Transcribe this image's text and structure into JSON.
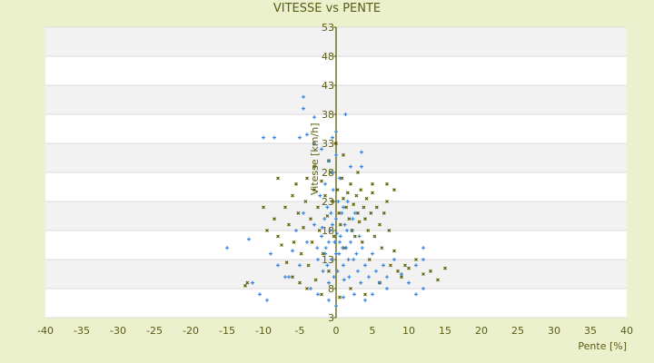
{
  "chart_data": {
    "type": "scatter",
    "title": "VITESSE vs PENTE",
    "xlabel": "Pente [%]",
    "ylabel": "Vitesse [km/h]",
    "xlim": [
      -40,
      40
    ],
    "ylim": [
      3,
      53
    ],
    "xticks": [
      -40,
      -35,
      -30,
      -25,
      -20,
      -15,
      -10,
      -5,
      0,
      5,
      10,
      15,
      20,
      25,
      30,
      35,
      40
    ],
    "yticks": [
      3,
      8,
      13,
      18,
      23,
      28,
      33,
      38,
      43,
      48,
      53
    ],
    "grid": "horizontal bands",
    "legend": "none",
    "series": [
      {
        "name": "series-olive",
        "color": "#5c5c00",
        "marker": "x",
        "points": [
          [
            -12.5,
            8.5
          ],
          [
            -12.2,
            9
          ],
          [
            -9.5,
            18
          ],
          [
            -8.5,
            20
          ],
          [
            -8,
            17
          ],
          [
            -7.5,
            15.5
          ],
          [
            -7,
            22
          ],
          [
            -6.8,
            12.5
          ],
          [
            -6.5,
            19
          ],
          [
            -6,
            24
          ],
          [
            -5.8,
            16
          ],
          [
            -5.5,
            26
          ],
          [
            -5.2,
            21
          ],
          [
            -5,
            9
          ],
          [
            -4.8,
            14
          ],
          [
            -4.5,
            18.5
          ],
          [
            -4.2,
            23
          ],
          [
            -4,
            27
          ],
          [
            -3.8,
            12
          ],
          [
            -3.5,
            20
          ],
          [
            -3.3,
            16
          ],
          [
            -3,
            25
          ],
          [
            -2.8,
            9.5
          ],
          [
            -2.5,
            22
          ],
          [
            -2.3,
            18
          ],
          [
            -2,
            26.5
          ],
          [
            -1.8,
            14
          ],
          [
            -1.5,
            24
          ],
          [
            -1.2,
            20.5
          ],
          [
            -1,
            11
          ],
          [
            -0.8,
            28
          ],
          [
            -0.5,
            23
          ],
          [
            -0.3,
            17
          ],
          [
            0.2,
            25
          ],
          [
            0.4,
            21
          ],
          [
            0.6,
            19
          ],
          [
            0.8,
            27
          ],
          [
            1,
            23.5
          ],
          [
            1.2,
            15
          ],
          [
            1.4,
            22
          ],
          [
            1.6,
            24.5
          ],
          [
            1.8,
            20
          ],
          [
            2,
            26
          ],
          [
            2.2,
            18
          ],
          [
            2.4,
            22.5
          ],
          [
            2.6,
            17
          ],
          [
            2.8,
            24
          ],
          [
            3,
            21
          ],
          [
            3.2,
            19.5
          ],
          [
            3.4,
            25
          ],
          [
            3.6,
            16
          ],
          [
            3.8,
            22
          ],
          [
            4,
            20
          ],
          [
            4.2,
            23.5
          ],
          [
            4.4,
            18
          ],
          [
            4.6,
            13
          ],
          [
            4.8,
            21
          ],
          [
            5,
            24.5
          ],
          [
            5.3,
            17
          ],
          [
            5.6,
            22
          ],
          [
            6,
            19
          ],
          [
            6.3,
            15
          ],
          [
            6.6,
            21
          ],
          [
            7,
            23
          ],
          [
            7.3,
            18
          ],
          [
            7.5,
            12
          ],
          [
            8,
            14.5
          ],
          [
            8.5,
            11
          ],
          [
            9,
            10
          ],
          [
            9.5,
            12
          ],
          [
            10,
            11.5
          ],
          [
            11,
            13
          ],
          [
            12,
            10.5
          ],
          [
            13,
            11
          ],
          [
            14,
            9.5
          ],
          [
            15,
            11.5
          ],
          [
            -2,
            7
          ],
          [
            0.5,
            6.5
          ],
          [
            2,
            8
          ],
          [
            4,
            7
          ],
          [
            -4,
            8
          ],
          [
            6,
            9
          ],
          [
            -6,
            10
          ],
          [
            1,
            31
          ],
          [
            0,
            33
          ],
          [
            -1,
            30
          ],
          [
            -8,
            27
          ],
          [
            -10,
            22
          ],
          [
            3,
            28
          ],
          [
            -3,
            29
          ],
          [
            5,
            26
          ],
          [
            7,
            26
          ],
          [
            8,
            25
          ]
        ]
      },
      {
        "name": "series-blue",
        "color": "#3a86d8",
        "marker": "+",
        "points": [
          [
            -15,
            15
          ],
          [
            -12,
            16.5
          ],
          [
            -11.5,
            9
          ],
          [
            -10,
            34
          ],
          [
            -8.5,
            34
          ],
          [
            -4.5,
            41
          ],
          [
            -4.5,
            39
          ],
          [
            -3,
            37.5
          ],
          [
            1.3,
            38
          ],
          [
            -5,
            34
          ],
          [
            -4,
            34.5
          ],
          [
            -0.5,
            34
          ],
          [
            3.5,
            31.5
          ],
          [
            3.5,
            29
          ],
          [
            12,
            13
          ],
          [
            12,
            15
          ],
          [
            11,
            12
          ],
          [
            10,
            9
          ],
          [
            9,
            10.5
          ],
          [
            -9,
            14
          ],
          [
            -8,
            12
          ],
          [
            -7,
            10
          ],
          [
            -6,
            14.5
          ],
          [
            -5.5,
            18
          ],
          [
            -5,
            12
          ],
          [
            -4.5,
            21
          ],
          [
            -4,
            16
          ],
          [
            -3.5,
            8
          ],
          [
            -3,
            19
          ],
          [
            -2.5,
            13
          ],
          [
            -2.2,
            24
          ],
          [
            -2,
            17
          ],
          [
            -1.8,
            11
          ],
          [
            -1.6,
            20
          ],
          [
            -1.4,
            15
          ],
          [
            -1.2,
            22
          ],
          [
            -1,
            9
          ],
          [
            -0.8,
            18
          ],
          [
            -0.6,
            13
          ],
          [
            -0.4,
            25
          ],
          [
            -0.2,
            16
          ],
          [
            0,
            20
          ],
          [
            0.2,
            11
          ],
          [
            0.4,
            14
          ],
          [
            0.6,
            17
          ],
          [
            0.8,
            21
          ],
          [
            1,
            12
          ],
          [
            1.2,
            19
          ],
          [
            1.4,
            15
          ],
          [
            1.6,
            23
          ],
          [
            1.8,
            10
          ],
          [
            2,
            16
          ],
          [
            2.2,
            18
          ],
          [
            2.4,
            13
          ],
          [
            2.6,
            21
          ],
          [
            2.8,
            14
          ],
          [
            3,
            11
          ],
          [
            3.2,
            17
          ],
          [
            3.4,
            9
          ],
          [
            3.6,
            15
          ],
          [
            4,
            12
          ],
          [
            4.5,
            10
          ],
          [
            5,
            14
          ],
          [
            5.5,
            11
          ],
          [
            6,
            9
          ],
          [
            6.5,
            12
          ],
          [
            7,
            10
          ],
          [
            8,
            13
          ],
          [
            -1.5,
            26
          ],
          [
            -0.5,
            28
          ],
          [
            0.5,
            27
          ],
          [
            -1,
            30
          ],
          [
            0,
            31
          ],
          [
            2,
            29
          ],
          [
            -2.5,
            7
          ],
          [
            -1,
            6
          ],
          [
            0,
            5
          ],
          [
            1,
            6.5
          ],
          [
            2.5,
            7
          ],
          [
            4,
            6
          ],
          [
            -1.5,
            14
          ],
          [
            -1,
            16
          ],
          [
            -0.5,
            19
          ],
          [
            0,
            14
          ],
          [
            0.5,
            16
          ],
          [
            1,
            22
          ],
          [
            1.5,
            18
          ],
          [
            -1.2,
            12
          ],
          [
            -0.3,
            10
          ],
          [
            0.3,
            23
          ],
          [
            0.9,
            15
          ],
          [
            1.7,
            13
          ],
          [
            -0.7,
            21
          ],
          [
            0.1,
            17.5
          ],
          [
            1.1,
            9.5
          ],
          [
            -1.9,
            18.5
          ],
          [
            2.3,
            20
          ],
          [
            -2.6,
            15
          ],
          [
            -6.5,
            10
          ],
          [
            -9.5,
            6
          ],
          [
            -10.5,
            7
          ],
          [
            5,
            7
          ],
          [
            7,
            8
          ],
          [
            11,
            7
          ],
          [
            12,
            8
          ],
          [
            -2,
            32
          ],
          [
            -3,
            33
          ],
          [
            0,
            35
          ]
        ]
      }
    ]
  }
}
